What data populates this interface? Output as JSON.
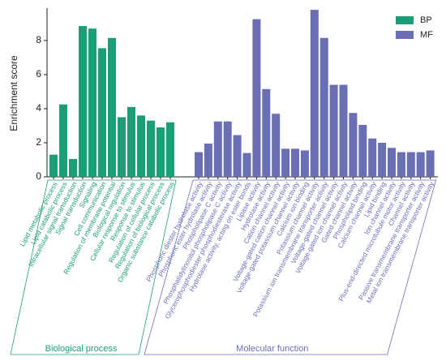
{
  "chart_data": {
    "type": "bar",
    "y_label": "Enrichment score",
    "ylim": [
      0,
      9.9
    ],
    "yticks": [
      0,
      2,
      4,
      6,
      8
    ],
    "legend": "top-right",
    "series": [
      {
        "name": "BP",
        "group": "Biological process",
        "color": "#1b9e77",
        "categories": [
          "Lipid metabolic process",
          "Lipid catabolic process",
          "Intracellular signal transduction",
          "Signal transduction",
          "Signaling",
          "Cell communication",
          "Regulation of membrane potential",
          "Biological regulation",
          "Cellular response to stimulus",
          "Response to stimulus",
          "Regulation of cellular process",
          "Regulation of biological process",
          "Organic substance catabolic process"
        ],
        "values": [
          1.3,
          4.25,
          1.05,
          8.85,
          8.7,
          7.55,
          8.15,
          3.5,
          4.1,
          3.6,
          3.3,
          2.9,
          3.2
        ]
      },
      {
        "name": "MF",
        "group": "Molecular function",
        "color": "#6a6fb4",
        "categories": [
          "Phosphoric diester hydrolase activity",
          "Phosphoric ester hydrolase activity",
          "Phospholipase C activity",
          "Phosphatidylinositol phospholipase C activity",
          "Glycerophosphodiester phosphodiesterase activity",
          "Hydrolase activity, acting on ester bonds",
          "Lipase activity",
          "Hydrolase activity",
          "Cation channel activity",
          "Voltage-gated cation channel activity",
          "Voltage-gated potassium channel activity",
          "Calcium ion binding",
          "Potassium channel activity",
          "Potassium ion transmembrane transporter activity",
          "Voltage-gated channel activity",
          "Voltage-gated ion channel activity",
          "Gated channel activity",
          "Phospholipid binding",
          "Calcium channel activity",
          "Lipid binding",
          "Ion channel activity",
          "Plus-end-directed microtubule motor activity",
          "Channel activity",
          "Passive transmembrane transporter activity",
          "Metal ion transmembrane transporter activity"
        ],
        "values": [
          1.45,
          1.95,
          3.25,
          3.25,
          2.45,
          1.4,
          9.25,
          5.15,
          3.7,
          1.65,
          1.65,
          1.55,
          9.8,
          8.15,
          5.4,
          5.4,
          3.75,
          3.05,
          2.25,
          2.0,
          1.7,
          1.45,
          1.45,
          1.45,
          1.55
        ]
      }
    ]
  }
}
